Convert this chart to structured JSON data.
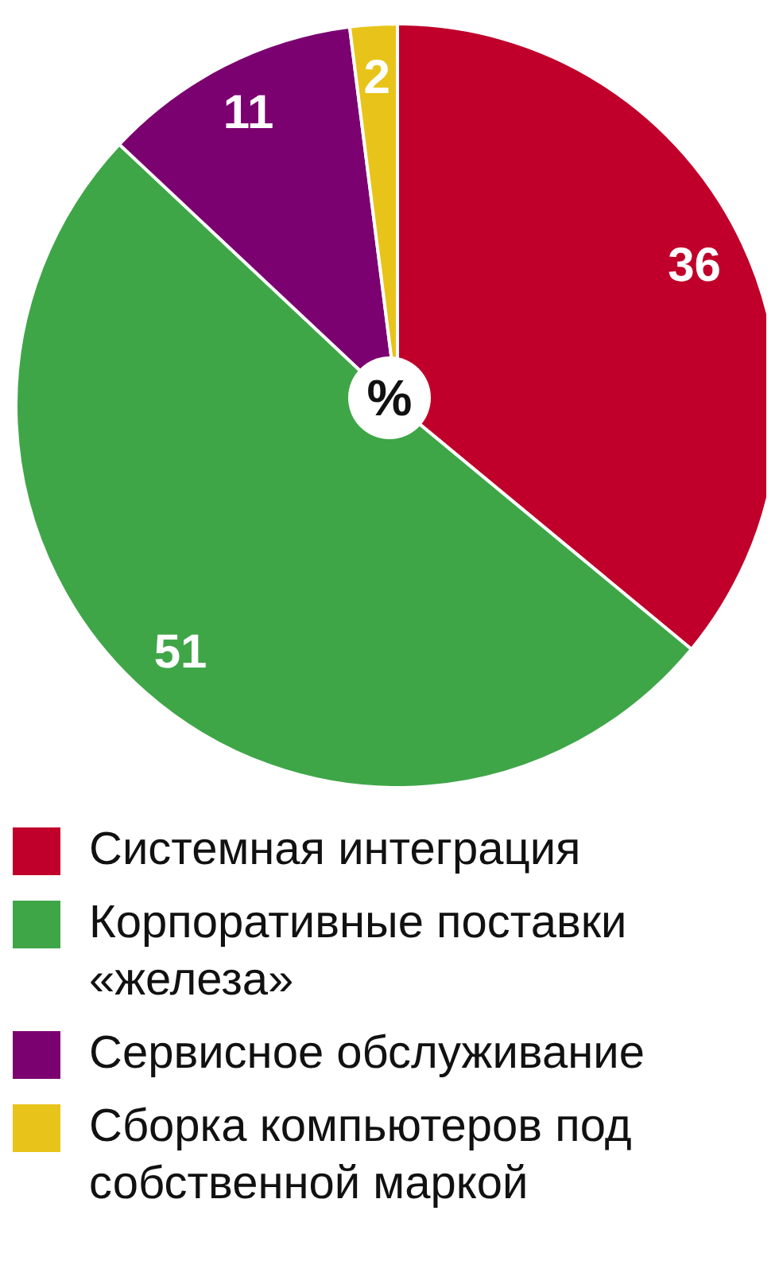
{
  "chart_data": {
    "type": "pie",
    "categories": [
      "Системная интеграция",
      "Корпоративные поставки «железа»",
      "Сервисное обслуживание",
      "Сборка компьютеров под собственной маркой"
    ],
    "values": [
      36,
      51,
      11,
      2
    ],
    "colors": [
      "#c0002a",
      "#3fa648",
      "#7b0070",
      "#e8c41a"
    ],
    "data_labels": true,
    "legend": "bottom",
    "annotations": [
      "%"
    ]
  }
}
